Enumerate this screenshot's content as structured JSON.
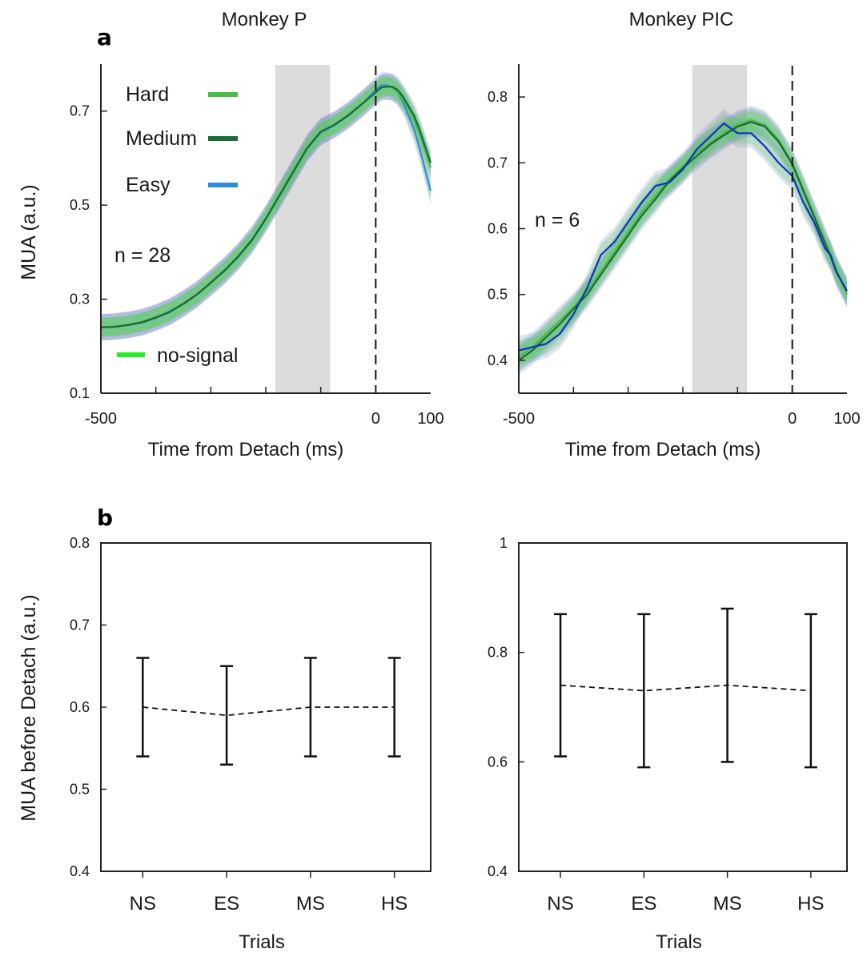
{
  "figure": {
    "panel_a_letter": "a",
    "panel_b_letter": "b",
    "shared_ylabel_a": "MUA  (a.u.)",
    "shared_ylabel_b": "MUA before Detach  (a.u.)"
  },
  "colors": {
    "hard": "#4cbb47",
    "medium": "#1b6b36",
    "easy": "#2b8fd6",
    "easy_trace_right": "#1030c8",
    "no_signal": "#22ee22",
    "band_blue": "#7080c8",
    "band_green": "#4fd04f",
    "gray_shade": "#dddcdc"
  },
  "chart_data": [
    {
      "type": "line",
      "title": "Monkey P",
      "xlabel": "Time from Detach (ms)",
      "ylabel": "MUA  (a.u.)",
      "xlim": [
        -500,
        100
      ],
      "ylim": [
        0.1,
        0.8
      ],
      "x_tick_labels": [
        {
          "value": -500,
          "label": "-500"
        },
        {
          "value": 0,
          "label": "0"
        },
        {
          "value": 100,
          "label": "100"
        }
      ],
      "y_tick_labels": [
        {
          "value": 0.1,
          "label": "0.1"
        },
        {
          "value": 0.3,
          "label": "0.3"
        },
        {
          "value": 0.5,
          "label": "0.5"
        },
        {
          "value": 0.7,
          "label": "0.7"
        }
      ],
      "x_minor_ticks": [
        -500,
        -400,
        -300,
        -200,
        -100,
        0
      ],
      "shaded_interval": [
        -183,
        -83
      ],
      "dashed_vline_x": 0,
      "legend": [
        {
          "label": "Hard",
          "color": "#4cbb47"
        },
        {
          "label": "Medium",
          "color": "#1b6b36"
        },
        {
          "label": "Easy",
          "color": "#2b8fd6"
        }
      ],
      "legend_extra": {
        "label": "no-signal",
        "color": "#22ee22"
      },
      "annotation": "n = 28",
      "x": [
        -500,
        -475,
        -450,
        -425,
        -400,
        -375,
        -350,
        -325,
        -300,
        -275,
        -250,
        -225,
        -200,
        -175,
        -150,
        -125,
        -100,
        -75,
        -50,
        -25,
        0,
        10,
        20,
        30,
        40,
        50,
        60,
        70,
        80,
        90,
        100
      ],
      "series": [
        {
          "key": "easy",
          "color": "#2b8fd6",
          "width": 2.2,
          "y": [
            0.24,
            0.242,
            0.245,
            0.25,
            0.26,
            0.272,
            0.29,
            0.31,
            0.335,
            0.36,
            0.39,
            0.425,
            0.47,
            0.52,
            0.57,
            0.62,
            0.655,
            0.67,
            0.69,
            0.715,
            0.745,
            0.755,
            0.755,
            0.75,
            0.74,
            0.72,
            0.69,
            0.66,
            0.62,
            0.575,
            0.53
          ]
        },
        {
          "key": "hard",
          "color": "#4cbb47",
          "width": 2.2,
          "y": [
            0.24,
            0.242,
            0.246,
            0.252,
            0.262,
            0.274,
            0.291,
            0.311,
            0.336,
            0.362,
            0.392,
            0.427,
            0.472,
            0.522,
            0.572,
            0.622,
            0.657,
            0.672,
            0.692,
            0.716,
            0.74,
            0.75,
            0.752,
            0.75,
            0.74,
            0.725,
            0.705,
            0.68,
            0.65,
            0.615,
            0.58
          ]
        },
        {
          "key": "medium",
          "color": "#1b6b36",
          "width": 2.2,
          "y": [
            0.24,
            0.241,
            0.245,
            0.251,
            0.261,
            0.273,
            0.29,
            0.31,
            0.335,
            0.361,
            0.391,
            0.426,
            0.471,
            0.521,
            0.571,
            0.621,
            0.656,
            0.671,
            0.691,
            0.715,
            0.74,
            0.75,
            0.752,
            0.752,
            0.745,
            0.73,
            0.71,
            0.69,
            0.66,
            0.625,
            0.59
          ]
        }
      ],
      "bands": [
        {
          "color": "#7080c8",
          "opacity": 0.45,
          "halfwidth": 0.028
        },
        {
          "color": "#4fd04f",
          "opacity": 0.55,
          "halfwidth": 0.02
        }
      ]
    },
    {
      "type": "line",
      "title": "Monkey PIC",
      "xlabel": "Time from Detach (ms)",
      "ylabel": "",
      "xlim": [
        -500,
        100
      ],
      "ylim": [
        0.35,
        0.85
      ],
      "x_tick_labels": [
        {
          "value": -500,
          "label": "-500"
        },
        {
          "value": 0,
          "label": "0"
        },
        {
          "value": 100,
          "label": "100"
        }
      ],
      "y_tick_labels": [
        {
          "value": 0.4,
          "label": "0.4"
        },
        {
          "value": 0.5,
          "label": "0.5"
        },
        {
          "value": 0.6,
          "label": "0.6"
        },
        {
          "value": 0.7,
          "label": "0.7"
        },
        {
          "value": 0.8,
          "label": "0.8"
        }
      ],
      "x_minor_ticks": [
        -500,
        -400,
        -300,
        -200,
        -100,
        0
      ],
      "shaded_interval": [
        -183,
        -83
      ],
      "dashed_vline_x": 0,
      "annotation": "n = 6",
      "x": [
        -500,
        -475,
        -450,
        -425,
        -400,
        -375,
        -350,
        -325,
        -300,
        -275,
        -250,
        -225,
        -200,
        -175,
        -150,
        -125,
        -100,
        -75,
        -50,
        -25,
        0,
        10,
        20,
        30,
        40,
        50,
        60,
        70,
        80,
        90,
        100
      ],
      "series": [
        {
          "key": "green",
          "color": "#4cbb47",
          "width": 2.2,
          "y": [
            0.405,
            0.42,
            0.44,
            0.46,
            0.48,
            0.505,
            0.535,
            0.565,
            0.595,
            0.625,
            0.65,
            0.675,
            0.695,
            0.715,
            0.73,
            0.745,
            0.758,
            0.765,
            0.758,
            0.735,
            0.7,
            0.68,
            0.66,
            0.64,
            0.62,
            0.6,
            0.58,
            0.56,
            0.54,
            0.52,
            0.5
          ]
        },
        {
          "key": "darkgreen",
          "color": "#1b6b36",
          "width": 2.2,
          "y": [
            0.4,
            0.415,
            0.435,
            0.455,
            0.478,
            0.5,
            0.53,
            0.56,
            0.59,
            0.62,
            0.645,
            0.672,
            0.692,
            0.71,
            0.728,
            0.742,
            0.755,
            0.762,
            0.755,
            0.732,
            0.698,
            0.678,
            0.658,
            0.638,
            0.618,
            0.598,
            0.578,
            0.558,
            0.535,
            0.52,
            0.505
          ]
        },
        {
          "key": "blue",
          "color": "#1030c8",
          "width": 2.2,
          "y": [
            0.415,
            0.42,
            0.425,
            0.44,
            0.47,
            0.51,
            0.56,
            0.58,
            0.61,
            0.64,
            0.665,
            0.67,
            0.69,
            0.72,
            0.74,
            0.76,
            0.745,
            0.745,
            0.725,
            0.7,
            0.68,
            0.66,
            0.64,
            0.625,
            0.61,
            0.59,
            0.57,
            0.56,
            0.535,
            0.52,
            0.505
          ]
        }
      ],
      "bands": [
        {
          "color": "#7080c8",
          "opacity": 0.45,
          "halfwidth": 0.022
        },
        {
          "color": "#4fd04f",
          "opacity": 0.55,
          "halfwidth": 0.016
        }
      ]
    },
    {
      "type": "scatter",
      "title": "",
      "xlabel": "Trials",
      "ylabel": "MUA before Detach  (a.u.)",
      "categories": [
        "NS",
        "ES",
        "MS",
        "HS"
      ],
      "ylim": [
        0.4,
        0.8
      ],
      "y_tick_labels": [
        {
          "value": 0.4,
          "label": "0.4"
        },
        {
          "value": 0.5,
          "label": "0.5"
        },
        {
          "value": 0.6,
          "label": "0.6"
        },
        {
          "value": 0.7,
          "label": "0.7"
        },
        {
          "value": 0.8,
          "label": "0.8"
        }
      ],
      "means": [
        0.6,
        0.59,
        0.6,
        0.6
      ],
      "lower": [
        0.54,
        0.53,
        0.54,
        0.54
      ],
      "upper": [
        0.66,
        0.65,
        0.66,
        0.66
      ]
    },
    {
      "type": "scatter",
      "title": "",
      "xlabel": "Trials",
      "ylabel": "",
      "categories": [
        "NS",
        "ES",
        "MS",
        "HS"
      ],
      "ylim": [
        0.4,
        1.0
      ],
      "y_tick_labels": [
        {
          "value": 0.4,
          "label": "0.4"
        },
        {
          "value": 0.6,
          "label": "0.6"
        },
        {
          "value": 0.8,
          "label": "0.8"
        },
        {
          "value": 1.0,
          "label": "1"
        }
      ],
      "means": [
        0.74,
        0.73,
        0.74,
        0.73
      ],
      "lower": [
        0.61,
        0.59,
        0.6,
        0.59
      ],
      "upper": [
        0.87,
        0.87,
        0.88,
        0.87
      ]
    }
  ]
}
